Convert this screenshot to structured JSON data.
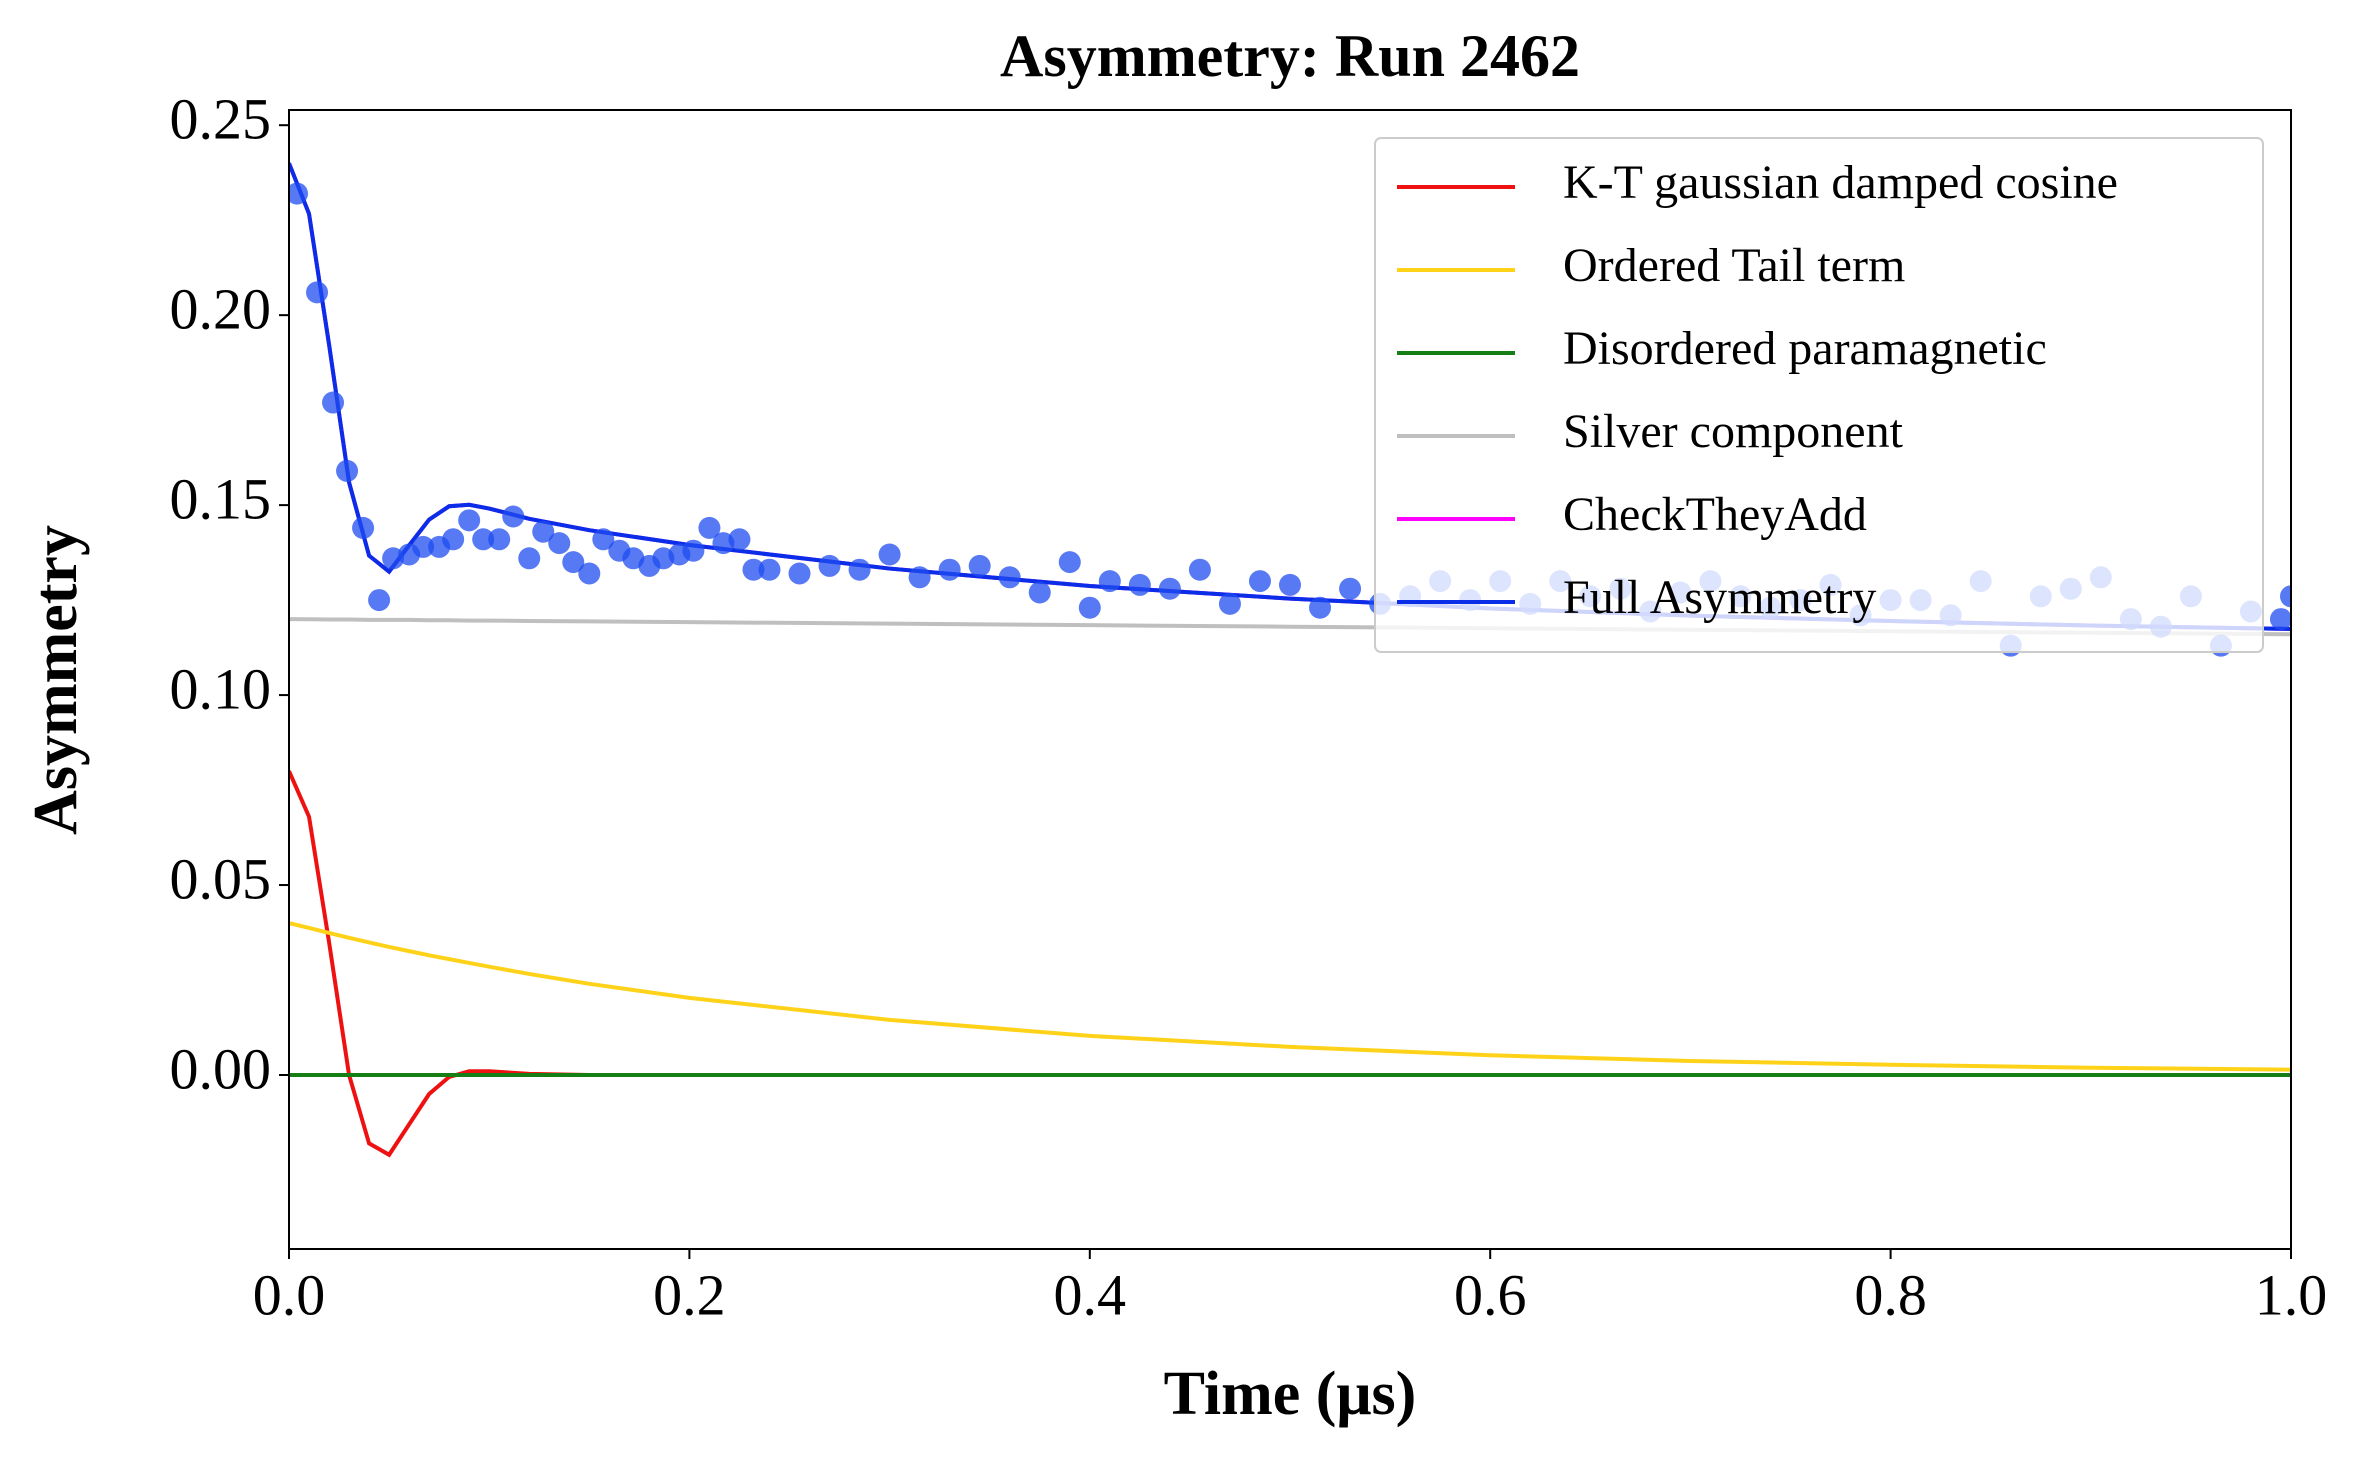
{
  "chart_data": {
    "type": "line",
    "title": "Asymmetry: Run 2462",
    "x_label": "Time (μs)",
    "y_label": "Asymmetry",
    "xlim": [
      0,
      1
    ],
    "ylim": [
      -0.0458,
      0.254
    ],
    "xticks": [
      {
        "value": 0,
        "label": "0.0"
      },
      0.2,
      0.4,
      0.6,
      0.8,
      {
        "value": 1,
        "label": "1.0"
      }
    ],
    "yticks": [
      {
        "value": 0,
        "label": "0.00"
      },
      0.05,
      {
        "value": 0.1,
        "label": "0.10"
      },
      0.15,
      {
        "value": 0.2,
        "label": "0.20"
      },
      0.25
    ],
    "legend": "upper right",
    "x": [
      0,
      0.01,
      0.02,
      0.03,
      0.04,
      0.05,
      0.06,
      0.07,
      0.08,
      0.09,
      0.1,
      0.12,
      0.15,
      0.2,
      0.3,
      0.4,
      0.5,
      0.6,
      0.7,
      0.8,
      0.9,
      1.0
    ],
    "series": [
      {
        "name": "K-T gaussian damped cosine",
        "color": "#ee1111",
        "values": [
          0.08,
          0.068,
          0.035,
          0.0,
          -0.018,
          -0.021,
          -0.013,
          -0.005,
          -0.0005,
          0.001,
          0.001,
          0.0003,
          0,
          0,
          0,
          0,
          0,
          0,
          0,
          0,
          0,
          0
        ]
      },
      {
        "name": "Ordered Tail term",
        "color": "#ffd21a",
        "values": [
          0.04,
          0.0387,
          0.0374,
          0.0361,
          0.0349,
          0.0337,
          0.0326,
          0.0315,
          0.0305,
          0.0295,
          0.0285,
          0.0266,
          0.024,
          0.0203,
          0.0145,
          0.0103,
          0.0074,
          0.0052,
          0.0037,
          0.0027,
          0.0019,
          0.0014
        ]
      },
      {
        "name": "Disordered paramagnetic",
        "color": "#157f15",
        "values": [
          0,
          0,
          0,
          0,
          0,
          0,
          0,
          0,
          0,
          0,
          0,
          0,
          0,
          0,
          0,
          0,
          0,
          0,
          0,
          0,
          0,
          0
        ]
      },
      {
        "name": "Silver component",
        "color": "#bfbfbf",
        "values": [
          0.12,
          0.11996,
          0.1199,
          0.1199,
          0.1198,
          0.1198,
          0.1198,
          0.1197,
          0.1197,
          0.1196,
          0.1196,
          0.1195,
          0.1194,
          0.1192,
          0.1188,
          0.1184,
          0.118,
          0.1176,
          0.1172,
          0.1168,
          0.1164,
          0.116
        ]
      },
      {
        "name": "CheckTheyAdd",
        "color": "#ff00ff",
        "values": [
          0.24,
          0.2267,
          0.1923,
          0.156,
          0.1367,
          0.1325,
          0.1394,
          0.1462,
          0.1497,
          0.1501,
          0.1491,
          0.1464,
          0.1434,
          0.1395,
          0.1333,
          0.1287,
          0.1254,
          0.1228,
          0.1209,
          0.1195,
          0.1183,
          0.1174
        ]
      },
      {
        "name": "Full Asymmetry",
        "color": "#0a2ee8",
        "values": [
          0.24,
          0.2267,
          0.1923,
          0.156,
          0.1367,
          0.1325,
          0.1394,
          0.1462,
          0.1497,
          0.1501,
          0.1491,
          0.1464,
          0.1434,
          0.1395,
          0.1333,
          0.1287,
          0.1254,
          0.1228,
          0.1209,
          0.1195,
          0.1183,
          0.1174
        ]
      }
    ],
    "data_points": {
      "color": "#1f4cf0",
      "x": [
        0.004,
        0.014,
        0.022,
        0.029,
        0.037,
        0.045,
        0.052,
        0.06,
        0.067,
        0.075,
        0.082,
        0.09,
        0.097,
        0.105,
        0.112,
        0.12,
        0.127,
        0.135,
        0.142,
        0.15,
        0.157,
        0.165,
        0.172,
        0.18,
        0.187,
        0.195,
        0.202,
        0.21,
        0.217,
        0.225,
        0.232,
        0.24,
        0.255,
        0.27,
        0.285,
        0.3,
        0.315,
        0.33,
        0.345,
        0.36,
        0.375,
        0.39,
        0.4,
        0.41,
        0.425,
        0.44,
        0.455,
        0.47,
        0.485,
        0.5,
        0.515,
        0.53,
        0.545,
        0.56,
        0.575,
        0.59,
        0.605,
        0.62,
        0.635,
        0.65,
        0.665,
        0.68,
        0.695,
        0.71,
        0.725,
        0.74,
        0.755,
        0.77,
        0.785,
        0.8,
        0.815,
        0.83,
        0.845,
        0.86,
        0.875,
        0.89,
        0.905,
        0.92,
        0.935,
        0.95,
        0.965,
        0.98,
        0.995,
        1.0
      ],
      "values": [
        0.232,
        0.206,
        0.177,
        0.159,
        0.144,
        0.125,
        0.136,
        0.137,
        0.139,
        0.139,
        0.141,
        0.146,
        0.141,
        0.141,
        0.147,
        0.136,
        0.143,
        0.14,
        0.135,
        0.132,
        0.141,
        0.138,
        0.136,
        0.134,
        0.136,
        0.137,
        0.138,
        0.144,
        0.14,
        0.141,
        0.133,
        0.133,
        0.132,
        0.134,
        0.133,
        0.137,
        0.131,
        0.133,
        0.134,
        0.131,
        0.127,
        0.135,
        0.123,
        0.13,
        0.129,
        0.128,
        0.133,
        0.124,
        0.13,
        0.129,
        0.123,
        0.128,
        0.124,
        0.126,
        0.13,
        0.125,
        0.13,
        0.124,
        0.13,
        0.126,
        0.128,
        0.122,
        0.127,
        0.13,
        0.126,
        0.123,
        0.125,
        0.129,
        0.121,
        0.125,
        0.125,
        0.121,
        0.13,
        0.113,
        0.126,
        0.128,
        0.131,
        0.12,
        0.118,
        0.126,
        0.113,
        0.122,
        0.12,
        0.126
      ]
    }
  }
}
